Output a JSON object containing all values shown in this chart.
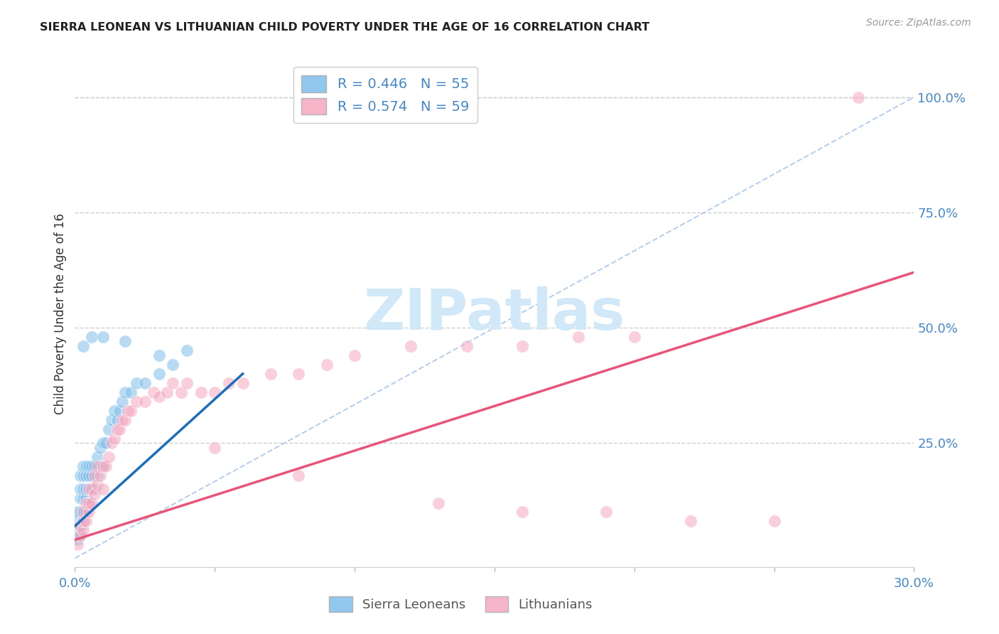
{
  "title": "SIERRA LEONEAN VS LITHUANIAN CHILD POVERTY UNDER THE AGE OF 16 CORRELATION CHART",
  "source": "Source: ZipAtlas.com",
  "ylabel": "Child Poverty Under the Age of 16",
  "xlim": [
    0.0,
    0.3
  ],
  "ylim": [
    -0.02,
    1.08
  ],
  "yticks_right": [
    0.0,
    0.25,
    0.5,
    0.75,
    1.0
  ],
  "ytick_labels_right": [
    "",
    "25.0%",
    "50.0%",
    "75.0%",
    "100.0%"
  ],
  "legend_entry1": "R = 0.446   N = 55",
  "legend_entry2": "R = 0.574   N = 59",
  "legend_label1": "Sierra Leoneans",
  "legend_label2": "Lithuanians",
  "blue_color": "#7fbfea",
  "blue_line_color": "#1a6fbd",
  "pink_color": "#f5a8c0",
  "pink_line_color": "#e8547a",
  "diag_color": "#aac8e8",
  "watermark_color": "#d0e8f8",
  "background_color": "#ffffff",
  "grid_color": "#d0d0d0",
  "axis_label_color": "#4488cc",
  "title_color": "#222222",
  "blue_scatter_x": [
    0.001,
    0.001,
    0.001,
    0.001,
    0.002,
    0.002,
    0.002,
    0.002,
    0.002,
    0.002,
    0.003,
    0.003,
    0.003,
    0.003,
    0.003,
    0.003,
    0.004,
    0.004,
    0.004,
    0.004,
    0.004,
    0.005,
    0.005,
    0.005,
    0.005,
    0.006,
    0.006,
    0.006,
    0.007,
    0.007,
    0.008,
    0.008,
    0.009,
    0.009,
    0.01,
    0.01,
    0.011,
    0.012,
    0.013,
    0.014,
    0.015,
    0.016,
    0.017,
    0.018,
    0.02,
    0.022,
    0.025,
    0.03,
    0.035,
    0.04,
    0.003,
    0.006,
    0.01,
    0.018,
    0.03
  ],
  "blue_scatter_y": [
    0.04,
    0.06,
    0.08,
    0.1,
    0.05,
    0.07,
    0.1,
    0.13,
    0.15,
    0.18,
    0.08,
    0.1,
    0.13,
    0.15,
    0.18,
    0.2,
    0.1,
    0.13,
    0.15,
    0.18,
    0.2,
    0.12,
    0.15,
    0.18,
    0.2,
    0.15,
    0.18,
    0.2,
    0.15,
    0.2,
    0.18,
    0.22,
    0.2,
    0.24,
    0.2,
    0.25,
    0.25,
    0.28,
    0.3,
    0.32,
    0.3,
    0.32,
    0.34,
    0.36,
    0.36,
    0.38,
    0.38,
    0.4,
    0.42,
    0.45,
    0.46,
    0.48,
    0.48,
    0.47,
    0.44
  ],
  "pink_scatter_x": [
    0.001,
    0.002,
    0.002,
    0.003,
    0.003,
    0.003,
    0.004,
    0.004,
    0.005,
    0.005,
    0.005,
    0.006,
    0.006,
    0.007,
    0.007,
    0.008,
    0.008,
    0.009,
    0.01,
    0.01,
    0.011,
    0.012,
    0.013,
    0.014,
    0.015,
    0.016,
    0.017,
    0.018,
    0.019,
    0.02,
    0.022,
    0.025,
    0.028,
    0.03,
    0.033,
    0.035,
    0.038,
    0.04,
    0.045,
    0.05,
    0.055,
    0.06,
    0.07,
    0.08,
    0.09,
    0.1,
    0.12,
    0.14,
    0.16,
    0.18,
    0.2,
    0.05,
    0.08,
    0.13,
    0.16,
    0.19,
    0.22,
    0.25,
    0.28
  ],
  "pink_scatter_y": [
    0.03,
    0.05,
    0.07,
    0.06,
    0.08,
    0.1,
    0.08,
    0.12,
    0.1,
    0.12,
    0.15,
    0.12,
    0.15,
    0.14,
    0.18,
    0.16,
    0.2,
    0.18,
    0.15,
    0.2,
    0.2,
    0.22,
    0.25,
    0.26,
    0.28,
    0.28,
    0.3,
    0.3,
    0.32,
    0.32,
    0.34,
    0.34,
    0.36,
    0.35,
    0.36,
    0.38,
    0.36,
    0.38,
    0.36,
    0.36,
    0.38,
    0.38,
    0.4,
    0.4,
    0.42,
    0.44,
    0.46,
    0.46,
    0.46,
    0.48,
    0.48,
    0.24,
    0.18,
    0.12,
    0.1,
    0.1,
    0.08,
    0.08,
    1.0
  ],
  "blue_line_x": [
    0.0,
    0.06
  ],
  "blue_line_y": [
    0.07,
    0.4
  ],
  "pink_line_x": [
    0.0,
    0.3
  ],
  "pink_line_y": [
    0.04,
    0.62
  ],
  "diag_line_x": [
    0.0,
    0.3
  ],
  "diag_line_y": [
    0.0,
    1.0
  ]
}
